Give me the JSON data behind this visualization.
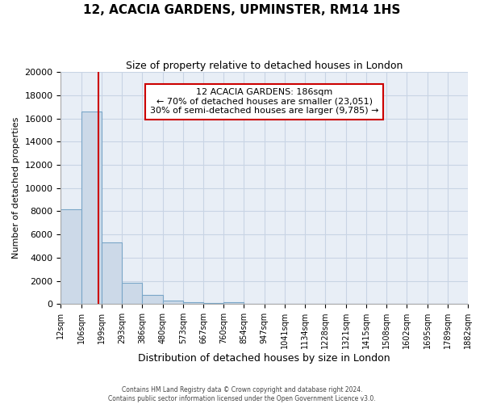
{
  "title_line1": "12, ACACIA GARDENS, UPMINSTER, RM14 1HS",
  "title_line2": "Size of property relative to detached houses in London",
  "xlabel": "Distribution of detached houses by size in London",
  "ylabel": "Number of detached properties",
  "bin_labels": [
    "12sqm",
    "106sqm",
    "199sqm",
    "293sqm",
    "386sqm",
    "480sqm",
    "573sqm",
    "667sqm",
    "760sqm",
    "854sqm",
    "947sqm",
    "1041sqm",
    "1134sqm",
    "1228sqm",
    "1321sqm",
    "1415sqm",
    "1508sqm",
    "1602sqm",
    "1695sqm",
    "1789sqm",
    "1882sqm"
  ],
  "bar_heights": [
    8150,
    16600,
    5300,
    1850,
    750,
    300,
    175,
    100,
    130,
    0,
    0,
    0,
    0,
    0,
    0,
    0,
    0,
    0,
    0,
    0
  ],
  "bar_color": "#ccd9e8",
  "bar_edgecolor": "#7aa6c8",
  "ylim": [
    0,
    20000
  ],
  "yticks": [
    0,
    2000,
    4000,
    6000,
    8000,
    10000,
    12000,
    14000,
    16000,
    18000,
    20000
  ],
  "bin_edges_numeric": [
    12,
    106,
    199,
    293,
    386,
    480,
    573,
    667,
    760,
    854,
    947,
    1041,
    1134,
    1228,
    1321,
    1415,
    1508,
    1602,
    1695,
    1789,
    1882
  ],
  "marker_sqm": 186,
  "annotation_line1": "12 ACACIA GARDENS: 186sqm",
  "annotation_line2": "← 70% of detached houses are smaller (23,051)",
  "annotation_line3": "30% of semi-detached houses are larger (9,785) →",
  "red_line_color": "#cc0000",
  "grid_color": "#c8d4e4",
  "background_color": "#e8eef6",
  "footer_line1": "Contains HM Land Registry data © Crown copyright and database right 2024.",
  "footer_line2": "Contains public sector information licensed under the Open Government Licence v3.0."
}
